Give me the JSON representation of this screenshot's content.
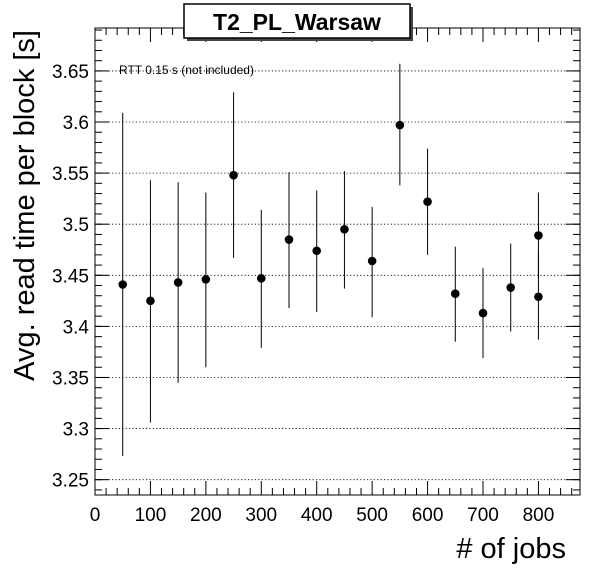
{
  "chart_data": {
    "type": "scatter",
    "title": "T2_PL_Warsaw",
    "xlabel": "# of jobs",
    "ylabel": "Avg. read time per block [s]",
    "annotation": "RTT 0.15 s (not included)",
    "xlim": [
      0,
      875
    ],
    "ylim": [
      3.235,
      3.692
    ],
    "x_ticks": [
      0,
      100,
      200,
      300,
      400,
      500,
      600,
      700,
      800
    ],
    "x_tick_labels": [
      "0",
      "100",
      "200",
      "300",
      "400",
      "500",
      "600",
      "700",
      "800"
    ],
    "y_ticks": [
      3.25,
      3.3,
      3.35,
      3.4,
      3.45,
      3.5,
      3.55,
      3.6,
      3.65
    ],
    "y_tick_labels": [
      "3.25",
      "3.3",
      "3.35",
      "3.4",
      "3.45",
      "3.5",
      "3.55",
      "3.6",
      "3.65"
    ],
    "grid": "horizontal dotted",
    "series": [
      {
        "marker_color": "#000000",
        "points": [
          {
            "x": 50,
            "y": 3.441,
            "ylo": 3.273,
            "yhi": 3.609
          },
          {
            "x": 100,
            "y": 3.425,
            "ylo": 3.306,
            "yhi": 3.543
          },
          {
            "x": 150,
            "y": 3.443,
            "ylo": 3.345,
            "yhi": 3.541
          },
          {
            "x": 200,
            "y": 3.446,
            "ylo": 3.36,
            "yhi": 3.531
          },
          {
            "x": 250,
            "y": 3.548,
            "ylo": 3.467,
            "yhi": 3.629
          },
          {
            "x": 300,
            "y": 3.447,
            "ylo": 3.379,
            "yhi": 3.514
          },
          {
            "x": 350,
            "y": 3.485,
            "ylo": 3.418,
            "yhi": 3.551
          },
          {
            "x": 400,
            "y": 3.474,
            "ylo": 3.414,
            "yhi": 3.533
          },
          {
            "x": 450,
            "y": 3.495,
            "ylo": 3.437,
            "yhi": 3.552
          },
          {
            "x": 500,
            "y": 3.464,
            "ylo": 3.409,
            "yhi": 3.517
          },
          {
            "x": 550,
            "y": 3.597,
            "ylo": 3.538,
            "yhi": 3.657
          },
          {
            "x": 600,
            "y": 3.522,
            "ylo": 3.47,
            "yhi": 3.574
          },
          {
            "x": 650,
            "y": 3.432,
            "ylo": 3.385,
            "yhi": 3.478
          },
          {
            "x": 700,
            "y": 3.413,
            "ylo": 3.369,
            "yhi": 3.457
          },
          {
            "x": 750,
            "y": 3.438,
            "ylo": 3.395,
            "yhi": 3.481
          },
          {
            "x": 800,
            "y": 3.489,
            "ylo": 3.447,
            "yhi": 3.531
          },
          {
            "x": 800,
            "y": 3.429,
            "ylo": 3.387,
            "yhi": 3.471
          }
        ]
      }
    ]
  }
}
